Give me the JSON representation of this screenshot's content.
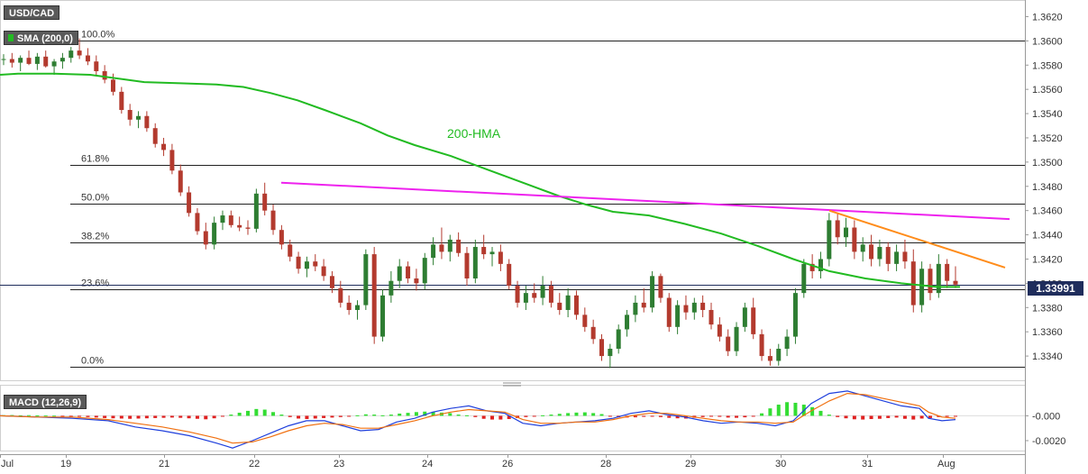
{
  "symbol": "USD/CAD",
  "indicator_label": "SMA (200,0)",
  "macd_label": "MACD (12,26,9)",
  "hma_label": "200-HMA",
  "current_price": "1.33991",
  "colors": {
    "up": "#2e7d32",
    "down": "#b33a2e",
    "hma": "#22bb22",
    "resistance_magenta": "#ee22ee",
    "resistance_orange": "#ff8c1a",
    "macd_line": "#1f3fdc",
    "signal_line": "#f07010",
    "hist_pos": "#33dd33",
    "hist_neg": "#e02020",
    "price_tag": "#1f2d5c"
  },
  "chart_data": {
    "type": "candlestick",
    "ylim": [
      1.332,
      1.363
    ],
    "y_ticks": [
      "1.3620",
      "1.3600",
      "1.3580",
      "1.3560",
      "1.3540",
      "1.3520",
      "1.3500",
      "1.3480",
      "1.3460",
      "1.3440",
      "1.3420",
      "1.3400",
      "1.3380",
      "1.3360",
      "1.3340"
    ],
    "x_labels": [
      "Jul",
      "19",
      "21",
      "22",
      "23",
      "24",
      "26",
      "28",
      "29",
      "30",
      "31",
      "Aug"
    ],
    "fibonacci": [
      {
        "label": "100.0%",
        "price": 1.36
      },
      {
        "label": "61.8%",
        "price": 1.3498
      },
      {
        "label": "50.0%",
        "price": 1.3466
      },
      {
        "label": "38.2%",
        "price": 1.3434
      },
      {
        "label": "23.6%",
        "price": 1.3395
      },
      {
        "label": "0.0%",
        "price": 1.3331
      }
    ],
    "current_price_level": 1.33991,
    "hma_200": [
      [
        0,
        1.3572
      ],
      [
        20,
        1.3573
      ],
      [
        60,
        1.3573
      ],
      [
        100,
        1.3572
      ],
      [
        140,
        1.3568
      ],
      [
        160,
        1.3566
      ],
      [
        200,
        1.3565
      ],
      [
        240,
        1.3564
      ],
      [
        270,
        1.3562
      ],
      [
        300,
        1.3557
      ],
      [
        330,
        1.3551
      ],
      [
        360,
        1.3543
      ],
      [
        400,
        1.3532
      ],
      [
        430,
        1.3522
      ],
      [
        460,
        1.3514
      ],
      [
        500,
        1.3505
      ],
      [
        540,
        1.3494
      ],
      [
        580,
        1.3483
      ],
      [
        620,
        1.3472
      ],
      [
        650,
        1.3465
      ],
      [
        680,
        1.3459
      ],
      [
        720,
        1.3456
      ],
      [
        760,
        1.3449
      ],
      [
        800,
        1.3441
      ],
      [
        840,
        1.3431
      ],
      [
        880,
        1.342
      ],
      [
        920,
        1.341
      ],
      [
        960,
        1.3404
      ],
      [
        1000,
        1.34
      ],
      [
        1040,
        1.3397
      ],
      [
        1065,
        1.3397
      ]
    ],
    "magenta_trendline": [
      [
        312,
        1.3483
      ],
      [
        1120,
        1.3453
      ]
    ],
    "orange_trendline": [
      [
        920,
        1.346
      ],
      [
        1115,
        1.3413
      ]
    ],
    "candles": [
      [
        1.3585,
        1.3589,
        1.358,
        1.3585
      ],
      [
        1.3585,
        1.359,
        1.3578,
        1.3582
      ],
      [
        1.3582,
        1.3588,
        1.3575,
        1.3586
      ],
      [
        1.3586,
        1.3592,
        1.358,
        1.3581
      ],
      [
        1.3581,
        1.359,
        1.3576,
        1.3587
      ],
      [
        1.3587,
        1.3592,
        1.3578,
        1.3579
      ],
      [
        1.3579,
        1.3585,
        1.3572,
        1.3583
      ],
      [
        1.3583,
        1.359,
        1.3577,
        1.3586
      ],
      [
        1.3586,
        1.3595,
        1.3582,
        1.3592
      ],
      [
        1.3592,
        1.3602,
        1.3585,
        1.3588
      ],
      [
        1.3588,
        1.3594,
        1.358,
        1.3583
      ],
      [
        1.3583,
        1.3588,
        1.3572,
        1.3575
      ],
      [
        1.3575,
        1.358,
        1.3565,
        1.3568
      ],
      [
        1.3568,
        1.3573,
        1.3555,
        1.3558
      ],
      [
        1.3558,
        1.3562,
        1.354,
        1.3543
      ],
      [
        1.3543,
        1.3548,
        1.353,
        1.3535
      ],
      [
        1.3535,
        1.3542,
        1.3528,
        1.3538
      ],
      [
        1.3538,
        1.3542,
        1.3525,
        1.3528
      ],
      [
        1.3528,
        1.3532,
        1.3512,
        1.3515
      ],
      [
        1.3515,
        1.352,
        1.3505,
        1.351
      ],
      [
        1.351,
        1.3515,
        1.349,
        1.3493
      ],
      [
        1.3493,
        1.3498,
        1.3472,
        1.3475
      ],
      [
        1.3475,
        1.348,
        1.3455,
        1.3458
      ],
      [
        1.3458,
        1.3462,
        1.344,
        1.3443
      ],
      [
        1.3443,
        1.345,
        1.3428,
        1.3432
      ],
      [
        1.3432,
        1.3455,
        1.3428,
        1.345
      ],
      [
        1.345,
        1.346,
        1.3444,
        1.3456
      ],
      [
        1.3456,
        1.346,
        1.3446,
        1.3448
      ],
      [
        1.3448,
        1.3455,
        1.3443,
        1.3446
      ],
      [
        1.3446,
        1.3452,
        1.344,
        1.3445
      ],
      [
        1.3445,
        1.3478,
        1.3442,
        1.3474
      ],
      [
        1.3474,
        1.3483,
        1.3456,
        1.346
      ],
      [
        1.346,
        1.3465,
        1.344,
        1.3444
      ],
      [
        1.3444,
        1.3448,
        1.3428,
        1.3432
      ],
      [
        1.3432,
        1.3436,
        1.3418,
        1.3422
      ],
      [
        1.3422,
        1.3426,
        1.3408,
        1.3412
      ],
      [
        1.3412,
        1.3422,
        1.3405,
        1.3418
      ],
      [
        1.3418,
        1.3424,
        1.341,
        1.3414
      ],
      [
        1.3414,
        1.342,
        1.3402,
        1.3406
      ],
      [
        1.3406,
        1.341,
        1.3392,
        1.3396
      ],
      [
        1.3396,
        1.3402,
        1.338,
        1.3384
      ],
      [
        1.3384,
        1.339,
        1.3374,
        1.3378
      ],
      [
        1.3378,
        1.3386,
        1.337,
        1.3382
      ],
      [
        1.3382,
        1.3428,
        1.3378,
        1.3424
      ],
      [
        1.3424,
        1.343,
        1.335,
        1.3356
      ],
      [
        1.3356,
        1.3395,
        1.3352,
        1.339
      ],
      [
        1.339,
        1.341,
        1.3384,
        1.3402
      ],
      [
        1.3402,
        1.342,
        1.3396,
        1.3414
      ],
      [
        1.3414,
        1.3418,
        1.34,
        1.3404
      ],
      [
        1.3404,
        1.3412,
        1.3394,
        1.34
      ],
      [
        1.34,
        1.3425,
        1.3395,
        1.3421
      ],
      [
        1.3421,
        1.3438,
        1.3415,
        1.3432
      ],
      [
        1.3432,
        1.3446,
        1.342,
        1.3426
      ],
      [
        1.3426,
        1.344,
        1.3418,
        1.3436
      ],
      [
        1.3436,
        1.3442,
        1.3422,
        1.3425
      ],
      [
        1.3425,
        1.343,
        1.3398,
        1.3404
      ],
      [
        1.3404,
        1.3436,
        1.34,
        1.343
      ],
      [
        1.343,
        1.344,
        1.342,
        1.3424
      ],
      [
        1.3424,
        1.343,
        1.3414,
        1.3426
      ],
      [
        1.3426,
        1.3432,
        1.341,
        1.3416
      ],
      [
        1.3416,
        1.342,
        1.3395,
        1.3398
      ],
      [
        1.3398,
        1.3402,
        1.338,
        1.3384
      ],
      [
        1.3384,
        1.3398,
        1.3378,
        1.3392
      ],
      [
        1.3392,
        1.34,
        1.3384,
        1.3388
      ],
      [
        1.3388,
        1.3406,
        1.3382,
        1.3398
      ],
      [
        1.3398,
        1.3402,
        1.338,
        1.3384
      ],
      [
        1.3384,
        1.3392,
        1.3374,
        1.3378
      ],
      [
        1.3378,
        1.3396,
        1.3372,
        1.339
      ],
      [
        1.339,
        1.3394,
        1.337,
        1.3374
      ],
      [
        1.3374,
        1.338,
        1.336,
        1.3364
      ],
      [
        1.3364,
        1.337,
        1.335,
        1.3354
      ],
      [
        1.3354,
        1.3358,
        1.3336,
        1.334
      ],
      [
        1.334,
        1.335,
        1.333,
        1.3346
      ],
      [
        1.3346,
        1.3366,
        1.3342,
        1.3362
      ],
      [
        1.3362,
        1.3378,
        1.3356,
        1.3374
      ],
      [
        1.3374,
        1.339,
        1.3368,
        1.3384
      ],
      [
        1.3384,
        1.3396,
        1.3376,
        1.338
      ],
      [
        1.338,
        1.341,
        1.3376,
        1.3406
      ],
      [
        1.3406,
        1.3408,
        1.3384,
        1.3388
      ],
      [
        1.3388,
        1.3392,
        1.336,
        1.3364
      ],
      [
        1.3364,
        1.3386,
        1.3358,
        1.3382
      ],
      [
        1.3382,
        1.339,
        1.337,
        1.3376
      ],
      [
        1.3376,
        1.3388,
        1.337,
        1.3384
      ],
      [
        1.3384,
        1.339,
        1.3372,
        1.3378
      ],
      [
        1.3378,
        1.3384,
        1.3362,
        1.3366
      ],
      [
        1.3366,
        1.3372,
        1.3352,
        1.3356
      ],
      [
        1.3356,
        1.3362,
        1.334,
        1.3344
      ],
      [
        1.3344,
        1.3368,
        1.334,
        1.3364
      ],
      [
        1.3364,
        1.3384,
        1.336,
        1.338
      ],
      [
        1.338,
        1.3388,
        1.3354,
        1.3358
      ],
      [
        1.3358,
        1.3362,
        1.3336,
        1.334
      ],
      [
        1.334,
        1.3346,
        1.3332,
        1.3336
      ],
      [
        1.3336,
        1.335,
        1.3332,
        1.3346
      ],
      [
        1.3346,
        1.3362,
        1.334,
        1.3356
      ],
      [
        1.3356,
        1.3396,
        1.335,
        1.3392
      ],
      [
        1.3392,
        1.342,
        1.3388,
        1.3416
      ],
      [
        1.3416,
        1.3424,
        1.3404,
        1.341
      ],
      [
        1.341,
        1.3426,
        1.3404,
        1.342
      ],
      [
        1.342,
        1.3458,
        1.3414,
        1.3452
      ],
      [
        1.3452,
        1.3458,
        1.3432,
        1.3438
      ],
      [
        1.3438,
        1.3454,
        1.343,
        1.3446
      ],
      [
        1.3446,
        1.3452,
        1.342,
        1.3426
      ],
      [
        1.3426,
        1.3438,
        1.3418,
        1.3432
      ],
      [
        1.3432,
        1.344,
        1.3414,
        1.342
      ],
      [
        1.342,
        1.3436,
        1.3414,
        1.343
      ],
      [
        1.343,
        1.3434,
        1.341,
        1.3416
      ],
      [
        1.3416,
        1.3432,
        1.341,
        1.3426
      ],
      [
        1.3426,
        1.3436,
        1.3412,
        1.3418
      ],
      [
        1.3418,
        1.3428,
        1.3376,
        1.3382
      ],
      [
        1.3382,
        1.3418,
        1.3376,
        1.3412
      ],
      [
        1.3412,
        1.3416,
        1.3386,
        1.3392
      ],
      [
        1.3392,
        1.3424,
        1.3388,
        1.3416
      ],
      [
        1.3416,
        1.342,
        1.3396,
        1.3402
      ],
      [
        1.3402,
        1.3414,
        1.3396,
        1.3399
      ]
    ],
    "macd": {
      "ylim": [
        -0.0028,
        0.0025
      ],
      "y_ticks": [
        "-0.000",
        "-0.0020"
      ],
      "histogram": [
        5e-05,
        6e-05,
        4e-05,
        5e-05,
        3e-05,
        2e-05,
        1e-05,
        -2e-05,
        -4e-05,
        -6e-05,
        -0.0001,
        -0.00014,
        -0.00018,
        -0.0002,
        -0.00022,
        -0.00024,
        -0.00022,
        -0.0002,
        -0.00018,
        -0.00016,
        -0.00014,
        -0.00016,
        -0.0002,
        -0.00024,
        -0.00028,
        -0.0002,
        -6e-05,
        0.0001,
        0.00025,
        0.0004,
        0.00055,
        0.0005,
        0.0003,
        0.0001,
        -0.0001,
        -0.00022,
        -0.00026,
        -0.00022,
        -0.00018,
        -0.00014,
        -0.0001,
        -4e-05,
        4e-05,
        0.00012,
        0.0001,
        4e-05,
        0.0001,
        0.00018,
        0.00024,
        0.0003,
        0.00034,
        0.0003,
        0.00026,
        0.00022,
        0.0001,
        4e-05,
        -0.0001,
        -0.00024,
        -0.0003,
        -0.0003,
        -0.00026,
        -0.00018,
        -0.0001,
        -4e-05,
        4e-05,
        0.0001,
        0.00016,
        0.00022,
        0.00026,
        0.00028,
        0.00022,
        0.00014,
        -6e-05,
        -0.00012,
        -0.00014,
        -0.00012,
        -8e-05,
        -4e-05,
        -0.0001,
        -0.00016,
        -0.0002,
        -0.00022,
        -0.00016,
        -0.0001,
        -4e-05,
        -8e-05,
        -0.00014,
        -0.00016,
        -0.00012,
        -6e-05,
        0.0002,
        0.0006,
        0.0009,
        0.0011,
        0.00105,
        0.0009,
        0.0007,
        0.0004,
        0.0001,
        -0.0001,
        -0.0002,
        -0.00028,
        -0.0003,
        -0.00026,
        -0.00024,
        -0.00018,
        -0.00014,
        -0.00024,
        -0.0003,
        -0.00022,
        -0.00018,
        -0.0001,
        -8e-05,
        -6e-05
      ],
      "macd_line": [
        [
          0,
          0.0
        ],
        [
          40,
          -0.0001
        ],
        [
          80,
          -0.0002
        ],
        [
          120,
          -0.0004
        ],
        [
          150,
          -0.0009
        ],
        [
          180,
          -0.0012
        ],
        [
          210,
          -0.0016
        ],
        [
          240,
          -0.0022
        ],
        [
          258,
          -0.0026
        ],
        [
          280,
          -0.002
        ],
        [
          300,
          -0.0014
        ],
        [
          320,
          -0.0008
        ],
        [
          340,
          -0.0004
        ],
        [
          360,
          -0.0004
        ],
        [
          380,
          -0.0008
        ],
        [
          400,
          -0.0012
        ],
        [
          420,
          -0.0011
        ],
        [
          440,
          -0.0005
        ],
        [
          460,
          -0.0002
        ],
        [
          480,
          0.0003
        ],
        [
          500,
          0.0006
        ],
        [
          520,
          0.0008
        ],
        [
          540,
          0.0004
        ],
        [
          560,
          0.0002
        ],
        [
          580,
          -0.0006
        ],
        [
          600,
          -0.0008
        ],
        [
          620,
          -0.0006
        ],
        [
          640,
          -0.0005
        ],
        [
          660,
          -0.0004
        ],
        [
          680,
          -0.0002
        ],
        [
          700,
          0.0002
        ],
        [
          720,
          0.0004
        ],
        [
          740,
          0.0001
        ],
        [
          760,
          -0.0001
        ],
        [
          780,
          -0.0004
        ],
        [
          800,
          -0.0006
        ],
        [
          820,
          -0.0005
        ],
        [
          840,
          -0.0006
        ],
        [
          860,
          -0.0008
        ],
        [
          880,
          -0.0004
        ],
        [
          900,
          0.001
        ],
        [
          920,
          0.0018
        ],
        [
          940,
          0.002
        ],
        [
          960,
          0.0016
        ],
        [
          980,
          0.0012
        ],
        [
          1000,
          0.0008
        ],
        [
          1020,
          0.0006
        ],
        [
          1030,
          -0.0002
        ],
        [
          1045,
          -0.0004
        ],
        [
          1060,
          -0.0003
        ]
      ],
      "signal_line": [
        [
          0,
          0.0
        ],
        [
          40,
          -0.0001
        ],
        [
          80,
          -0.0001
        ],
        [
          120,
          -0.0003
        ],
        [
          150,
          -0.0006
        ],
        [
          180,
          -0.0009
        ],
        [
          210,
          -0.0013
        ],
        [
          240,
          -0.0018
        ],
        [
          258,
          -0.0022
        ],
        [
          280,
          -0.0021
        ],
        [
          300,
          -0.0017
        ],
        [
          320,
          -0.0012
        ],
        [
          340,
          -0.0008
        ],
        [
          360,
          -0.0006
        ],
        [
          380,
          -0.0007
        ],
        [
          400,
          -0.001
        ],
        [
          420,
          -0.001
        ],
        [
          440,
          -0.0007
        ],
        [
          460,
          -0.0004
        ],
        [
          480,
          0.0
        ],
        [
          500,
          0.0003
        ],
        [
          520,
          0.0005
        ],
        [
          540,
          0.0004
        ],
        [
          560,
          0.0003
        ],
        [
          580,
          -0.0003
        ],
        [
          600,
          -0.0006
        ],
        [
          620,
          -0.0006
        ],
        [
          640,
          -0.0005
        ],
        [
          660,
          -0.0005
        ],
        [
          680,
          -0.0003
        ],
        [
          700,
          0.0
        ],
        [
          720,
          0.0002
        ],
        [
          740,
          0.0002
        ],
        [
          760,
          0.0
        ],
        [
          780,
          -0.0002
        ],
        [
          800,
          -0.0004
        ],
        [
          820,
          -0.0005
        ],
        [
          840,
          -0.0005
        ],
        [
          860,
          -0.0006
        ],
        [
          880,
          -0.0005
        ],
        [
          900,
          0.0004
        ],
        [
          920,
          0.0012
        ],
        [
          940,
          0.0018
        ],
        [
          960,
          0.0017
        ],
        [
          980,
          0.0014
        ],
        [
          1000,
          0.0011
        ],
        [
          1020,
          0.0008
        ],
        [
          1030,
          0.0003
        ],
        [
          1045,
          -0.0001
        ],
        [
          1060,
          -0.0002
        ]
      ]
    }
  }
}
